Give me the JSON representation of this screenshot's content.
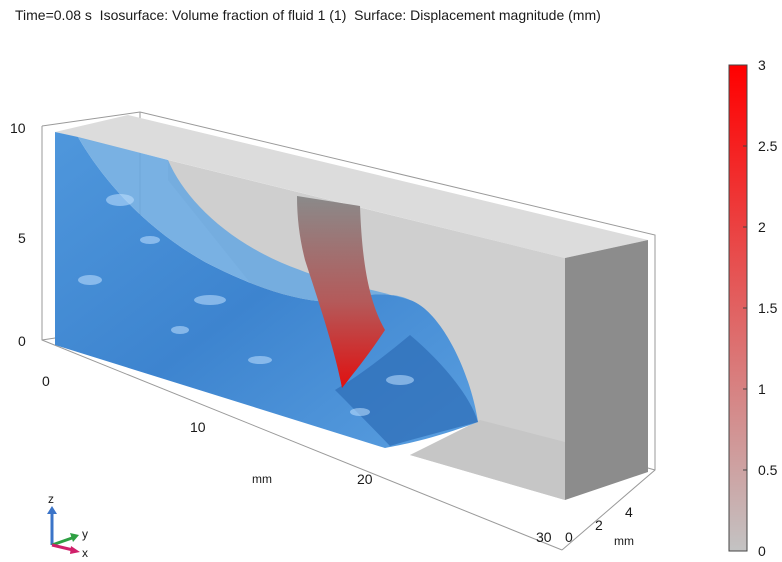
{
  "title": "Time=0.08 s  Isosurface: Volume fraction of fluid 1 (1)  Surface: Displacement magnitude (mm)",
  "chart_data": {
    "type": "3d-surface",
    "time": "0.08 s",
    "isosurface": "Volume fraction of fluid 1 (1)",
    "surface": "Displacement magnitude (mm)",
    "axes": {
      "x": {
        "ticks": [
          "0",
          "10",
          "20",
          "30"
        ],
        "unit": "mm",
        "range": [
          0,
          30
        ]
      },
      "y": {
        "ticks": [
          "0",
          "2",
          "4"
        ],
        "unit": "mm",
        "range": [
          0,
          5
        ]
      },
      "z": {
        "ticks": [
          "0",
          "5",
          "10"
        ],
        "range": [
          0,
          10
        ]
      }
    },
    "colorbar": {
      "min": 0,
      "max": 3,
      "ticks": [
        "3",
        "2.5",
        "2",
        "1.5",
        "1",
        "0.5",
        "0"
      ],
      "color_low": "#c3c3c3",
      "color_high": "#ff0000"
    },
    "triad": {
      "labels": [
        "z",
        "y",
        "x"
      ]
    },
    "colors": {
      "water": "#4a8fd4",
      "solid": "#c8c8c8",
      "deformed_gate": "#d01818"
    }
  }
}
